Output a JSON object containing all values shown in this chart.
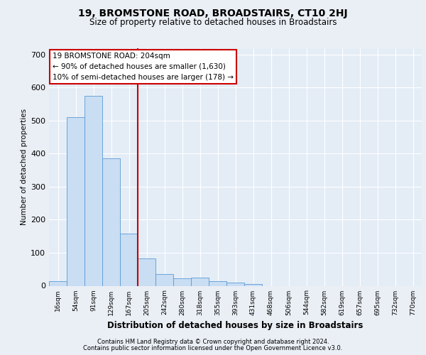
{
  "title1": "19, BROMSTONE ROAD, BROADSTAIRS, CT10 2HJ",
  "title2": "Size of property relative to detached houses in Broadstairs",
  "xlabel": "Distribution of detached houses by size in Broadstairs",
  "ylabel": "Number of detached properties",
  "bar_labels": [
    "16sqm",
    "54sqm",
    "91sqm",
    "129sqm",
    "167sqm",
    "205sqm",
    "242sqm",
    "280sqm",
    "318sqm",
    "355sqm",
    "393sqm",
    "431sqm",
    "468sqm",
    "506sqm",
    "544sqm",
    "582sqm",
    "619sqm",
    "657sqm",
    "695sqm",
    "732sqm",
    "770sqm"
  ],
  "bar_values": [
    13,
    510,
    575,
    385,
    157,
    83,
    35,
    22,
    24,
    13,
    10,
    5,
    0,
    0,
    0,
    0,
    0,
    0,
    0,
    0,
    0
  ],
  "bar_color": "#c9ddf3",
  "bar_edge_color": "#5b9bd5",
  "vline_x": 5,
  "vline_color": "#cc0000",
  "annotation_line1": "19 BROMSTONE ROAD: 204sqm",
  "annotation_line2": "← 90% of detached houses are smaller (1,630)",
  "annotation_line3": "10% of semi-detached houses are larger (178) →",
  "ylim": [
    0,
    720
  ],
  "yticks": [
    0,
    100,
    200,
    300,
    400,
    500,
    600,
    700
  ],
  "footer1": "Contains HM Land Registry data © Crown copyright and database right 2024.",
  "footer2": "Contains public sector information licensed under the Open Government Licence v3.0.",
  "bg_color": "#eaeff5",
  "plot_bg_color": "#e4edf6"
}
